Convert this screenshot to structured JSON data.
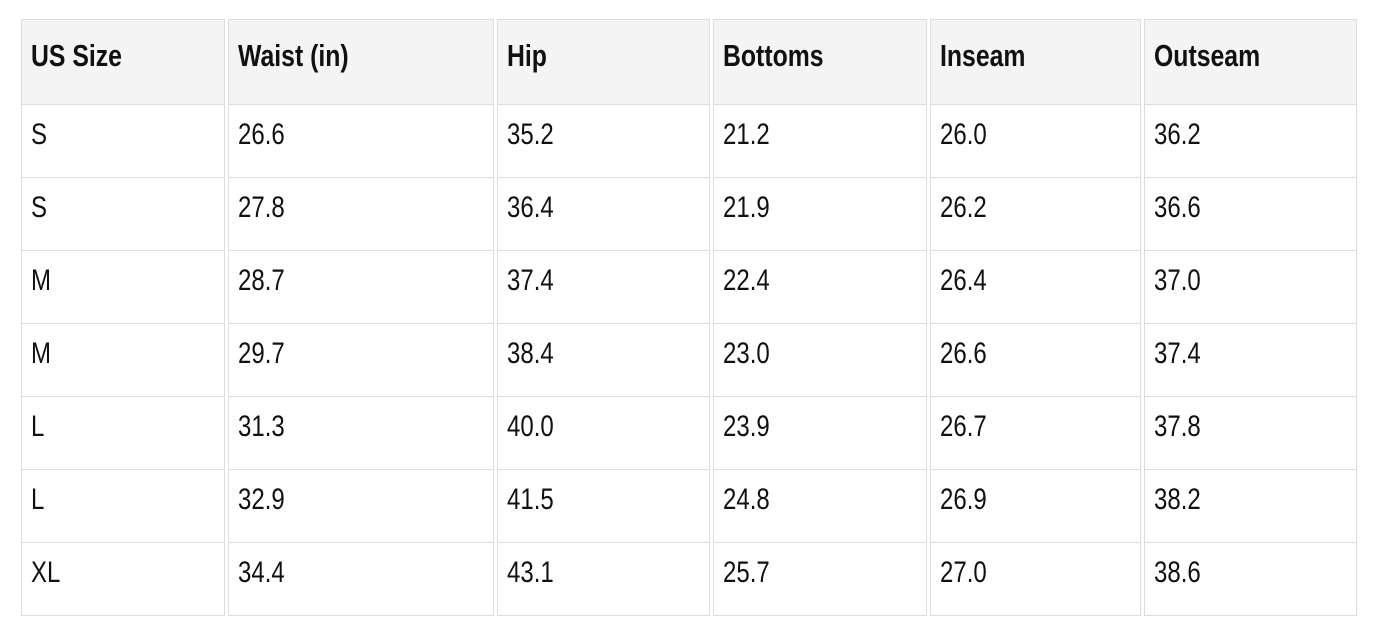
{
  "page": {
    "background_color": "#ffffff",
    "text_color": "#111111"
  },
  "table": {
    "title": "size-chart",
    "header_bg_color": "#f4f4f4",
    "border_color": "#dddddd",
    "columns": [
      "US Size",
      "Waist (in)",
      "Hip",
      "Bottoms",
      "Inseam",
      "Outseam"
    ],
    "rows": [
      [
        "S",
        "26.6",
        "35.2",
        "21.2",
        "26.0",
        "36.2"
      ],
      [
        "S",
        "27.8",
        "36.4",
        "21.9",
        "26.2",
        "36.6"
      ],
      [
        "M",
        "28.7",
        "37.4",
        "22.4",
        "26.4",
        "37.0"
      ],
      [
        "M",
        "29.7",
        "38.4",
        "23.0",
        "26.6",
        "37.4"
      ],
      [
        "L",
        "31.3",
        "40.0",
        "23.9",
        "26.7",
        "37.8"
      ],
      [
        "L",
        "32.9",
        "41.5",
        "24.8",
        "26.9",
        "38.2"
      ],
      [
        "XL",
        "34.4",
        "43.1",
        "25.7",
        "27.0",
        "38.6"
      ]
    ]
  }
}
